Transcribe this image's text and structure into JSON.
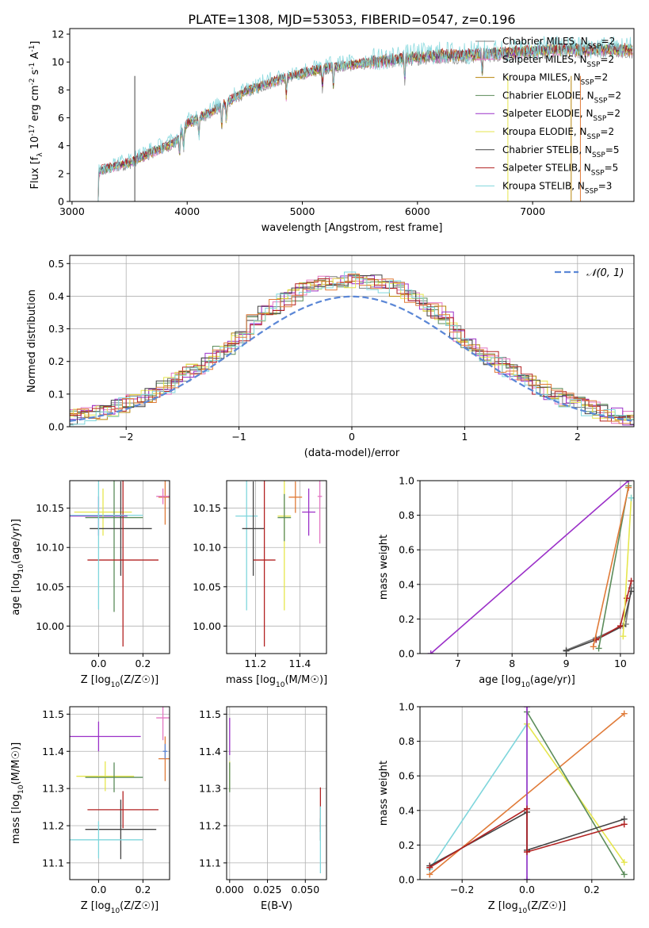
{
  "figure": {
    "title": "PLATE=1308, MJD=53053, FIBERID=0547, z=0.196"
  },
  "colors": {
    "chabrier_miles": "#7f7f7f",
    "salpeter_miles": "#e377c2",
    "kroupa_miles": "#b8860b",
    "chabrier_elodie": "#5b8c5a",
    "salpeter_elodie": "#9b30c8",
    "kroupa_elodie": "#e6e64d",
    "chabrier_stelib": "#444444",
    "salpeter_stelib": "#b22222",
    "kroupa_stelib": "#7fd6dc",
    "orange": "#e07b39",
    "normal_curve": "#5b87d6"
  },
  "chart_data": [
    {
      "id": "spectrum",
      "type": "line",
      "title": "PLATE=1308, MJD=53053, FIBERID=0547, z=0.196",
      "xlabel": "wavelength [Angstrom, rest frame]",
      "ylabel": "Flux [f_λ 10^-17 erg cm^-2 s^-1 A^-1]",
      "xlim": [
        2980,
        7880
      ],
      "ylim": [
        0,
        12.4
      ],
      "xticks": [
        3000,
        4000,
        5000,
        6000,
        7000
      ],
      "yticks": [
        0,
        2,
        4,
        6,
        8,
        10,
        12
      ],
      "legend_position": "top-right",
      "legend": [
        {
          "label": "Chabrier MILES, N_SSP=2",
          "color": "#7f7f7f"
        },
        {
          "label": "Salpeter MILES, N_SSP=2",
          "color": "#e377c2"
        },
        {
          "label": "Kroupa MILES, N_SSP=2",
          "color": "#b8860b"
        },
        {
          "label": "Chabrier ELODIE, N_SSP=2",
          "color": "#5b8c5a"
        },
        {
          "label": "Salpeter ELODIE, N_SSP=2",
          "color": "#9b30c8"
        },
        {
          "label": "Kroupa ELODIE, N_SSP=2",
          "color": "#e6e64d"
        },
        {
          "label": "Chabrier STELIB, N_SSP=5",
          "color": "#444444"
        },
        {
          "label": "Salpeter STELIB, N_SSP=5",
          "color": "#b22222"
        },
        {
          "label": "Kroupa STELIB, N_SSP=3",
          "color": "#7fd6dc"
        }
      ],
      "continuum": {
        "x": [
          3210,
          3300,
          3400,
          3500,
          3600,
          3700,
          3800,
          3900,
          4000,
          4100,
          4200,
          4300,
          4400,
          4500,
          4600,
          4700,
          4800,
          4900,
          5000,
          5200,
          5400,
          5600,
          5800,
          6000,
          6200,
          6400,
          6600,
          6800,
          7000,
          7200,
          7400,
          7600,
          7800
        ],
        "y": [
          2.1,
          2.4,
          2.6,
          2.8,
          3.2,
          3.6,
          3.9,
          4.3,
          5.6,
          6.0,
          6.4,
          6.9,
          7.4,
          7.9,
          8.2,
          8.5,
          8.8,
          9.0,
          9.2,
          9.6,
          9.8,
          10.0,
          10.2,
          10.4,
          10.5,
          10.5,
          10.6,
          10.7,
          10.8,
          10.9,
          10.9,
          10.9,
          10.9
        ]
      }
    },
    {
      "id": "residuals",
      "type": "line",
      "xlabel": "(data-model)/error",
      "ylabel": "Normed distribution",
      "xlim": [
        -2.5,
        2.5
      ],
      "ylim": [
        0,
        0.525
      ],
      "xticks": [
        -2,
        -1,
        0,
        1,
        2
      ],
      "yticks": [
        0.0,
        0.1,
        0.2,
        0.3,
        0.4,
        0.5
      ],
      "grid": true,
      "legend_position": "top-right",
      "legend": [
        {
          "label": "𝒩(0, 1)",
          "color": "#5b87d6"
        }
      ],
      "normal": {
        "mean": 0,
        "sigma": 1
      }
    },
    {
      "id": "age_vs_Z",
      "type": "scatter",
      "xlabel": "Z [log10(Z/Z☉)]",
      "ylabel": "age  [log10(age/yr)]",
      "xlim": [
        -0.13,
        0.32
      ],
      "ylim": [
        9.965,
        10.185
      ],
      "xticks": [
        0.0,
        0.2
      ],
      "yticks": [
        10.0,
        10.05,
        10.1,
        10.15
      ],
      "grid": true,
      "points": [
        {
          "x": 0.0,
          "y": 10.14,
          "xerr": 0.13,
          "yerr": 0.025,
          "color": "#9b30c8"
        },
        {
          "x": 0.02,
          "y": 10.145,
          "xerr": 0.13,
          "yerr": 0.03,
          "color": "#e6e64d"
        },
        {
          "x": 0.07,
          "y": 10.138,
          "xerr": 0.13,
          "yerr": 0.12,
          "color": "#5b8c5a"
        },
        {
          "x": 0.1,
          "y": 10.124,
          "xerr": 0.14,
          "yerr": 0.06,
          "color": "#444444"
        },
        {
          "x": 0.11,
          "y": 10.084,
          "xerr": 0.16,
          "yerr": 0.11,
          "color": "#b22222"
        },
        {
          "x": 0.0,
          "y": 10.141,
          "xerr": 0.2,
          "yerr": 0.12,
          "color": "#7fd6dc"
        },
        {
          "x": 0.3,
          "y": 10.164,
          "xerr": 0.03,
          "yerr": 0.035,
          "color": "#e07b39"
        },
        {
          "x": 0.29,
          "y": 10.165,
          "xerr": 0.03,
          "yerr": 0.01,
          "color": "#e377c2"
        }
      ]
    },
    {
      "id": "age_vs_mass",
      "type": "scatter",
      "xlabel": "mass [log10(M/M☉)]",
      "ylabel": "",
      "xlim": [
        11.07,
        11.52
      ],
      "ylim": [
        9.965,
        10.185
      ],
      "xticks": [
        11.2,
        11.4
      ],
      "yticks": [
        10.0,
        10.05,
        10.1,
        10.15
      ],
      "grid": true,
      "points": [
        {
          "x": 11.16,
          "y": 10.14,
          "xerr": 0.05,
          "yerr": 0.12,
          "color": "#7fd6dc"
        },
        {
          "x": 11.19,
          "y": 10.124,
          "xerr": 0.05,
          "yerr": 0.06,
          "color": "#444444"
        },
        {
          "x": 11.24,
          "y": 10.084,
          "xerr": 0.05,
          "yerr": 0.11,
          "color": "#b22222"
        },
        {
          "x": 11.33,
          "y": 10.14,
          "xerr": 0.03,
          "yerr": 0.12,
          "color": "#e6e64d"
        },
        {
          "x": 11.33,
          "y": 10.138,
          "xerr": 0.03,
          "yerr": 0.03,
          "color": "#5b8c5a"
        },
        {
          "x": 11.38,
          "y": 10.164,
          "xerr": 0.03,
          "yerr": 0.02,
          "color": "#e07b39"
        },
        {
          "x": 11.44,
          "y": 10.145,
          "xerr": 0.03,
          "yerr": 0.03,
          "color": "#9b30c8"
        },
        {
          "x": 11.49,
          "y": 10.165,
          "xerr": 0.01,
          "yerr": 0.06,
          "color": "#e377c2"
        }
      ]
    },
    {
      "id": "weight_vs_age",
      "type": "line",
      "xlabel": "age  [log10(age/yr)]",
      "ylabel": "mass weight",
      "xlim": [
        6.3,
        10.25
      ],
      "ylim": [
        0,
        1.0
      ],
      "xticks": [
        7,
        8,
        9,
        10
      ],
      "yticks": [
        0.0,
        0.2,
        0.4,
        0.6,
        0.8,
        1.0
      ],
      "grid": true,
      "series": [
        {
          "color": "#9b30c8",
          "x": [
            6.5,
            10.15
          ],
          "y": [
            0.0,
            1.0
          ]
        },
        {
          "color": "#7f7f7f",
          "x": [
            9.0,
            9.55,
            10.1,
            10.2
          ],
          "y": [
            0.02,
            0.09,
            0.17,
            0.38
          ]
        },
        {
          "color": "#444444",
          "x": [
            9.0,
            9.55,
            10.05,
            10.2
          ],
          "y": [
            0.015,
            0.08,
            0.16,
            0.36
          ]
        },
        {
          "color": "#b22222",
          "x": [
            9.55,
            10.0,
            10.12,
            10.2
          ],
          "y": [
            0.08,
            0.16,
            0.32,
            0.42
          ]
        },
        {
          "color": "#5b8c5a",
          "x": [
            9.6,
            10.15
          ],
          "y": [
            0.03,
            0.97
          ]
        },
        {
          "color": "#e07b39",
          "x": [
            9.5,
            10.15
          ],
          "y": [
            0.04,
            0.96
          ]
        },
        {
          "color": "#e6e64d",
          "x": [
            10.05,
            10.2
          ],
          "y": [
            0.1,
            0.9
          ]
        },
        {
          "color": "#7fd6dc",
          "x": [
            10.2
          ],
          "y": [
            0.9
          ]
        }
      ]
    },
    {
      "id": "mass_vs_Z",
      "type": "scatter",
      "xlabel": "Z [log10(Z/Z☉)]",
      "ylabel": "mass [log10(M/M☉)]",
      "xlim": [
        -0.13,
        0.32
      ],
      "ylim": [
        11.055,
        11.52
      ],
      "xticks": [
        0.0,
        0.2
      ],
      "yticks": [
        11.1,
        11.2,
        11.3,
        11.4,
        11.5
      ],
      "grid": true,
      "points": [
        {
          "x": 0.0,
          "y": 11.44,
          "xerr": 0.19,
          "yerr": 0.04,
          "color": "#9b30c8"
        },
        {
          "x": 0.03,
          "y": 11.333,
          "xerr": 0.13,
          "yerr": 0.04,
          "color": "#e6e64d"
        },
        {
          "x": 0.07,
          "y": 11.33,
          "xerr": 0.13,
          "yerr": 0.04,
          "color": "#5b8c5a"
        },
        {
          "x": 0.1,
          "y": 11.19,
          "xerr": 0.16,
          "yerr": 0.08,
          "color": "#444444"
        },
        {
          "x": 0.11,
          "y": 11.243,
          "xerr": 0.16,
          "yerr": 0.05,
          "color": "#b22222"
        },
        {
          "x": 0.0,
          "y": 11.162,
          "xerr": 0.2,
          "yerr": 0.05,
          "color": "#7fd6dc"
        },
        {
          "x": 0.3,
          "y": 11.38,
          "xerr": 0.03,
          "yerr": 0.06,
          "color": "#e07b39"
        },
        {
          "x": 0.29,
          "y": 11.49,
          "xerr": 0.03,
          "yerr": 0.06,
          "color": "#e377c2"
        },
        {
          "x": 0.3,
          "y": 11.4,
          "xerr": 0.01,
          "yerr": 0.02,
          "color": "#5b87d6"
        }
      ]
    },
    {
      "id": "mass_vs_ebv",
      "type": "scatter",
      "xlabel": "E(B-V)",
      "ylabel": "",
      "xlim": [
        -0.002,
        0.064
      ],
      "ylim": [
        11.055,
        11.52
      ],
      "xticks": [
        0.0,
        0.025,
        0.05
      ],
      "yticks": [
        11.1,
        11.2,
        11.3,
        11.4,
        11.5
      ],
      "grid": true,
      "points": [
        {
          "x": 0.0,
          "y": 11.44,
          "xerr": 0,
          "yerr": 0.05,
          "color": "#9b30c8"
        },
        {
          "x": 0.0,
          "y": 11.333,
          "xerr": 0,
          "yerr": 0.04,
          "color": "#e6e64d"
        },
        {
          "x": 0.0,
          "y": 11.33,
          "xerr": 0,
          "yerr": 0.04,
          "color": "#5b8c5a"
        },
        {
          "x": 0.06,
          "y": 11.243,
          "xerr": 0,
          "yerr": 0.06,
          "color": "#b22222"
        },
        {
          "x": 0.06,
          "y": 11.19,
          "xerr": 0,
          "yerr": 0.03,
          "color": "#444444"
        },
        {
          "x": 0.06,
          "y": 11.162,
          "xerr": 0,
          "yerr": 0.09,
          "color": "#7fd6dc"
        }
      ]
    },
    {
      "id": "weight_vs_Z",
      "type": "line",
      "xlabel": "Z [log10(Z/Z☉)]",
      "ylabel": "mass weight",
      "xlim": [
        -0.33,
        0.33
      ],
      "ylim": [
        0,
        1.0
      ],
      "xticks": [
        -0.2,
        0.0,
        0.2
      ],
      "yticks": [
        0.0,
        0.2,
        0.4,
        0.6,
        0.8,
        1.0
      ],
      "grid": true,
      "series": [
        {
          "color": "#e07b39",
          "x": [
            -0.3,
            0.3
          ],
          "y": [
            0.03,
            0.96
          ]
        },
        {
          "color": "#7fd6dc",
          "x": [
            -0.3,
            0.0,
            0.0
          ],
          "y": [
            0.06,
            0.9,
            0.0
          ]
        },
        {
          "color": "#e6e64d",
          "x": [
            0.0,
            0.3
          ],
          "y": [
            0.9,
            0.1
          ]
        },
        {
          "color": "#5b8c5a",
          "x": [
            0.0,
            0.3
          ],
          "y": [
            0.97,
            0.03
          ]
        },
        {
          "color": "#9b30c8",
          "x": [
            0.0,
            0.0
          ],
          "y": [
            0.0,
            1.0
          ]
        },
        {
          "color": "#444444",
          "x": [
            -0.3,
            0.0,
            0.0,
            0.3
          ],
          "y": [
            0.08,
            0.39,
            0.17,
            0.35
          ]
        },
        {
          "color": "#b22222",
          "x": [
            -0.3,
            0.0,
            0.0,
            0.3
          ],
          "y": [
            0.07,
            0.41,
            0.16,
            0.32
          ]
        }
      ]
    }
  ]
}
